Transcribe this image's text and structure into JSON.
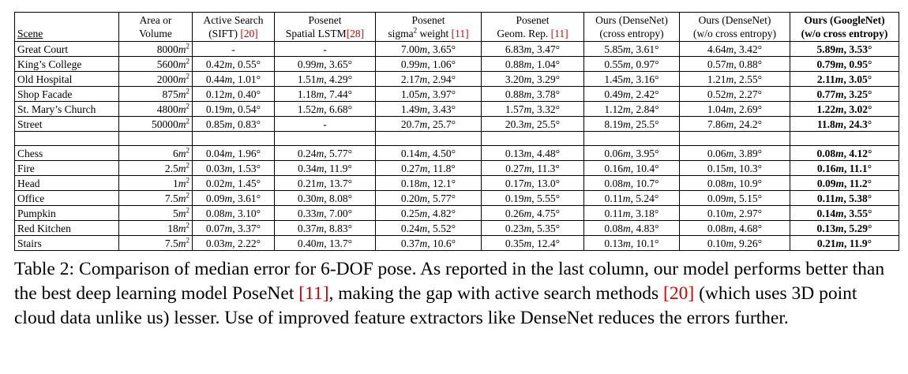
{
  "headers": [
    {
      "l1": "",
      "l2": "Scene"
    },
    {
      "l1": "Area or",
      "l2": "Volume"
    },
    {
      "l1": "Active Search",
      "l2": "(SIFT) ",
      "cite": "[20]"
    },
    {
      "l1": "Posenet",
      "l2": "Spatial LSTM",
      "cite": "[28]"
    },
    {
      "l1": "Posenet",
      "l2a": "sigma",
      "sup": "2",
      "l2b": " weight ",
      "cite": "[11]"
    },
    {
      "l1": "Posenet",
      "l2": "Geom. Rep. ",
      "cite": "[11]"
    },
    {
      "l1": "Ours (DenseNet)",
      "l2": "(cross entropy)"
    },
    {
      "l1": "Ours (DenseNet)",
      "l2": "(w/o cross entropy)"
    },
    {
      "l1": "Ours (GoogleNet)",
      "l2": "(w/o cross entropy)"
    }
  ],
  "group1": [
    {
      "scene": "Great Court",
      "area": "8000",
      "exp": "2",
      "cells": [
        [
          "-",
          ""
        ],
        [
          "-",
          ""
        ],
        [
          "7.00",
          "3.65°"
        ],
        [
          "6.83",
          "3.47°"
        ],
        [
          "5.85",
          "3.61°"
        ],
        [
          "4.64",
          "3.42°"
        ],
        [
          "5.89",
          "3.53°"
        ]
      ]
    },
    {
      "scene": "King’s College",
      "area": "5600",
      "exp": "2",
      "cells": [
        [
          "0.42",
          "0.55°"
        ],
        [
          "0.99",
          "3.65°"
        ],
        [
          "0.99",
          "1.06°"
        ],
        [
          "0.88",
          "1.04°"
        ],
        [
          "0.55",
          "0.97°"
        ],
        [
          "0.57",
          "0.88°"
        ],
        [
          "0.79",
          "0.95°"
        ]
      ]
    },
    {
      "scene": "Old Hospital",
      "area": "2000",
      "exp": "2",
      "cells": [
        [
          "0.44",
          "1.01°"
        ],
        [
          "1.51",
          "4.29°"
        ],
        [
          "2.17",
          "2.94°"
        ],
        [
          "3.20",
          "3.29°"
        ],
        [
          "1.45",
          "3.16°"
        ],
        [
          "1.21",
          "2.55°"
        ],
        [
          "2.11",
          "3.05°"
        ]
      ]
    },
    {
      "scene": "Shop Facade",
      "area": "875",
      "exp": "2",
      "cells": [
        [
          "0.12",
          "0.40°"
        ],
        [
          "1.18",
          "7.44°"
        ],
        [
          "1.05",
          "3.97°"
        ],
        [
          "0.88",
          "3.78°"
        ],
        [
          "0.49",
          "2.42°"
        ],
        [
          "0.52",
          "2.27°"
        ],
        [
          "0.77",
          "3.25°"
        ]
      ]
    },
    {
      "scene": "St. Mary’s Church",
      "area": "4800",
      "exp": "2",
      "cells": [
        [
          "0.19",
          "0.54°"
        ],
        [
          "1.52",
          "6.68°"
        ],
        [
          "1.49",
          "3.43°"
        ],
        [
          "1.57",
          "3.32°"
        ],
        [
          "1.12",
          "2.84°"
        ],
        [
          "1.04",
          "2.69°"
        ],
        [
          "1.22",
          "3.02°"
        ]
      ]
    },
    {
      "scene": "Street",
      "area": "50000",
      "exp": "2",
      "cells": [
        [
          "0.85",
          "0.83°"
        ],
        [
          "-",
          ""
        ],
        [
          "20.7",
          "25.7°"
        ],
        [
          "20.3",
          "25.5°"
        ],
        [
          "8.19",
          "25.5°"
        ],
        [
          "7.86",
          "24.2°"
        ],
        [
          "11.8",
          "24.3°"
        ]
      ]
    }
  ],
  "group2": [
    {
      "scene": "Chess",
      "area": "6",
      "exp": "2",
      "cells": [
        [
          "0.04",
          "1.96°"
        ],
        [
          "0.24",
          "5.77°"
        ],
        [
          "0.14",
          "4.50°"
        ],
        [
          "0.13",
          "4.48°"
        ],
        [
          "0.06",
          "3.95°"
        ],
        [
          "0.06",
          "3.89°"
        ],
        [
          "0.08",
          "4.12°"
        ]
      ]
    },
    {
      "scene": "Fire",
      "area": "2.5",
      "exp": "2",
      "cells": [
        [
          "0.03",
          "1.53°"
        ],
        [
          "0.34",
          "11.9°"
        ],
        [
          "0.27",
          "11.8°"
        ],
        [
          "0.27",
          "11.3°"
        ],
        [
          "0.16",
          "10.4°"
        ],
        [
          "0.15",
          "10.3°"
        ],
        [
          "0.16",
          "11.1°"
        ]
      ]
    },
    {
      "scene": "Head",
      "area": "1",
      "exp": "2",
      "cells": [
        [
          "0.02",
          "1.45°"
        ],
        [
          "0.21",
          "13.7°"
        ],
        [
          "0.18",
          "12.1°"
        ],
        [
          "0.17",
          "13.0°"
        ],
        [
          "0.08",
          "10.7°"
        ],
        [
          "0.08",
          "10.9°"
        ],
        [
          "0.09",
          "11.2°"
        ]
      ]
    },
    {
      "scene": "Office",
      "area": "7.5",
      "exp": "2",
      "cells": [
        [
          "0.09",
          "3.61°"
        ],
        [
          "0.30",
          "8.08°"
        ],
        [
          "0.20",
          "5.77°"
        ],
        [
          "0.19",
          "5.55°"
        ],
        [
          "0.11",
          "5.24°"
        ],
        [
          "0.09",
          "5.15°"
        ],
        [
          "0.11",
          "5.38°"
        ]
      ]
    },
    {
      "scene": "Pumpkin",
      "area": "5",
      "exp": "2",
      "cells": [
        [
          "0.08",
          "3.10°"
        ],
        [
          "0.33",
          "7.00°"
        ],
        [
          "0.25",
          "4.82°"
        ],
        [
          "0.26",
          "4.75°"
        ],
        [
          "0.11",
          "3.18°"
        ],
        [
          "0.10",
          "2.97°"
        ],
        [
          "0.14",
          "3.55°"
        ]
      ]
    },
    {
      "scene": "Red Kitchen",
      "area": "18",
      "exp": "2",
      "cells": [
        [
          "0.07",
          "3.37°"
        ],
        [
          "0.37",
          "8.83°"
        ],
        [
          "0.24",
          "5.52°"
        ],
        [
          "0.23",
          "5.35°"
        ],
        [
          "0.08",
          "4.83°"
        ],
        [
          "0.08",
          "4.68°"
        ],
        [
          "0.13",
          "5.29°"
        ]
      ]
    },
    {
      "scene": "Stairs",
      "area": "7.5",
      "exp": "2",
      "cells": [
        [
          "0.03",
          "2.22°"
        ],
        [
          "0.40",
          "13.7°"
        ],
        [
          "0.37",
          "10.6°"
        ],
        [
          "0.35",
          "12.4°"
        ],
        [
          "0.13",
          "10.1°"
        ],
        [
          "0.10",
          "9.26°"
        ],
        [
          "0.21",
          "11.9°"
        ]
      ]
    }
  ],
  "unit_m": "m",
  "caption": {
    "label": "Table 2:",
    "t1": "Comparison of median error for 6-DOF pose.  As reported in the last column, our model performs better than the best deep learning model PoseNet ",
    "cite1": "[11]",
    "t2": ", making the gap with active search methods ",
    "cite2": "[20]",
    "t3": " (which uses 3D point cloud data unlike us) lesser.  Use of improved feature extractors like DenseNet reduces the errors further."
  },
  "colors": {
    "cite": "#d40000"
  }
}
